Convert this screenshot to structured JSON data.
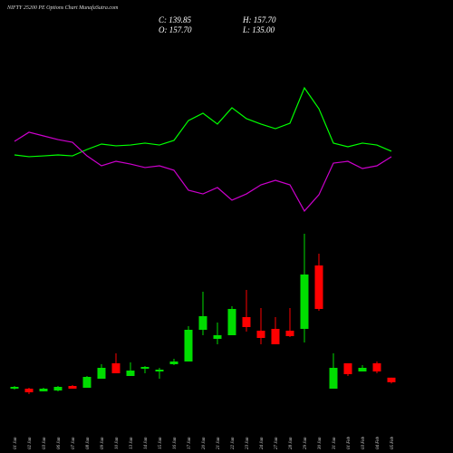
{
  "chart_data": {
    "type": "candlestick",
    "title": "NIFTY 25200 PE Options Chart MunafaSutra.com",
    "annotations": [
      "C: 139.85",
      "H: 157.70",
      "O: 157.70",
      "L: 135.00"
    ],
    "categories": [
      "01 Jan",
      "02 Jan",
      "03 Jan",
      "06 Jan",
      "07 Jan",
      "08 Jan",
      "09 Jan",
      "10 Jan",
      "13 Jan",
      "14 Jan",
      "15 Jan",
      "16 Jan",
      "17 Jan",
      "20 Jan",
      "21 Jan",
      "22 Jan",
      "23 Jan",
      "24 Jan",
      "27 Jan",
      "28 Jan",
      "29 Jan",
      "30 Jan",
      "31 Jan",
      "01 Feb",
      "03 Feb",
      "04 Feb",
      "05 Feb"
    ],
    "open": [
      114.55,
      114.55,
      104.1,
      107.45,
      125.2,
      118.1,
      153.6,
      213.95,
      164.25,
      192.65,
      182,
      210.4,
      221.05,
      345.3,
      309.8,
      324,
      395,
      341.75,
      348.85,
      341.75,
      348.85,
      597.35,
      114.55,
      213.95,
      182,
      213.95,
      157.7
    ],
    "high": [
      125.2,
      118.1,
      118.1,
      125.2,
      128.75,
      164.25,
      210.4,
      253,
      217.5,
      203.3,
      196.2,
      231.7,
      359.5,
      494.4,
      373.7,
      437.6,
      501.5,
      430.5,
      395,
      430.5,
      721.6,
      643.5,
      253,
      213.95,
      206.85,
      221.05,
      157.7
    ],
    "low": [
      111,
      93.25,
      104.1,
      104.1,
      114.55,
      118.1,
      153.6,
      174.9,
      164.25,
      174.9,
      153.6,
      206.85,
      221.05,
      324,
      288.5,
      324,
      338.2,
      288.5,
      288.5,
      316.9,
      295.6,
      419.85,
      114.55,
      164.25,
      182,
      174.9,
      135
    ],
    "close": [
      121.65,
      100.35,
      114.55,
      121.65,
      114.55,
      160.7,
      196.2,
      174.9,
      185.55,
      199.75,
      189.1,
      221.05,
      345.3,
      398.55,
      324,
      426.95,
      355.95,
      313.35,
      288.5,
      320.45,
      561.85,
      426.95,
      196.2,
      171.35,
      196.2,
      182,
      139.85
    ],
    "up_color": "#00dd00",
    "down_color": "#ff0000",
    "ylim": [
      40,
      750
    ],
    "y2lim": [
      0,
      100
    ],
    "indicators": [
      {
        "color": "#00ff00",
        "axis": "y2",
        "values": [
          46,
          44.7,
          45.3,
          46,
          45.3,
          50,
          54,
          52.7,
          53.3,
          54.7,
          53.3,
          56.7,
          71.3,
          76.7,
          68.7,
          80.7,
          72.7,
          68.7,
          65.3,
          69.3,
          95.3,
          80,
          54.7,
          52,
          54.7,
          53.3,
          48.7
        ]
      },
      {
        "color": "#cc00cc",
        "axis": "y2",
        "values": [
          56,
          62.7,
          60,
          57.3,
          55.3,
          45.3,
          38,
          41.3,
          39.3,
          36.7,
          38,
          34.7,
          20,
          17.3,
          22,
          12.7,
          17.3,
          24,
          27.3,
          24,
          4.7,
          16.7,
          40,
          41.3,
          36,
          38,
          44.7
        ]
      }
    ]
  }
}
